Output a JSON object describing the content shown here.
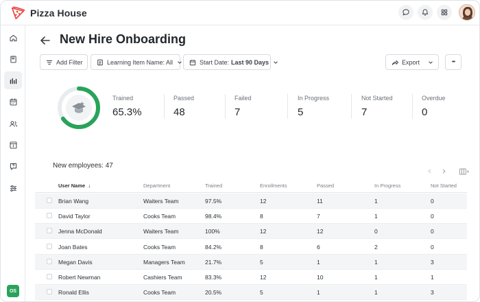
{
  "app": {
    "brand_name": "Pizza House",
    "accent_color": "#e8453c",
    "success_color": "#29a35a"
  },
  "topbar": {
    "icons": [
      "chat-icon",
      "bell-icon",
      "apps-grid-icon",
      "user-avatar"
    ]
  },
  "sidebar": {
    "items": [
      "home-icon",
      "book-icon",
      "chart-icon",
      "calendar-icon",
      "users-icon",
      "info-card-icon",
      "help-icon",
      "sliders-icon"
    ],
    "active_index": 2,
    "badge": "OS"
  },
  "page": {
    "title": "New Hire Onboarding"
  },
  "filters": {
    "add_filter": "Add Filter",
    "learning_item": "Learning Item Name: All",
    "start_date_label": "Start Date:",
    "start_date_value": "Last 90 Days",
    "export": "Export",
    "more": "•••"
  },
  "stats": {
    "trained_fraction": 0.653,
    "items": [
      {
        "label": "Trained",
        "value": "65.3%"
      },
      {
        "label": "Passed",
        "value": "48"
      },
      {
        "label": "Failed",
        "value": "7"
      },
      {
        "label": "In Progress",
        "value": "5"
      },
      {
        "label": "Not Started",
        "value": "7"
      },
      {
        "label": "Overdue",
        "value": "0"
      }
    ]
  },
  "table": {
    "caption": "New employees: 47",
    "columns": [
      "User Name",
      "Department",
      "Trained",
      "Enrollments",
      "Passed",
      "In Progress",
      "Not Started"
    ],
    "sort_indicator": "↓",
    "rows": [
      [
        "Brian Wang",
        "Waiters Team",
        "97.5%",
        "12",
        "11",
        "1",
        "0"
      ],
      [
        "David Taylor",
        "Cooks Team",
        "98.4%",
        "8",
        "7",
        "1",
        "0"
      ],
      [
        "Jenna McDonald",
        "Waiters Team",
        "100%",
        "12",
        "12",
        "0",
        "0"
      ],
      [
        "Joan Bates",
        "Cooks Team",
        "84.2%",
        "8",
        "6",
        "2",
        "0"
      ],
      [
        "Megan Davis",
        "Managers Team",
        "21.7%",
        "5",
        "1",
        "1",
        "3"
      ],
      [
        "Robert Newman",
        "Cashiers Team",
        "83.3%",
        "12",
        "10",
        "1",
        "1"
      ],
      [
        "Ronald Ellis",
        "Cooks Team",
        "20.5%",
        "5",
        "1",
        "1",
        "3"
      ]
    ]
  }
}
